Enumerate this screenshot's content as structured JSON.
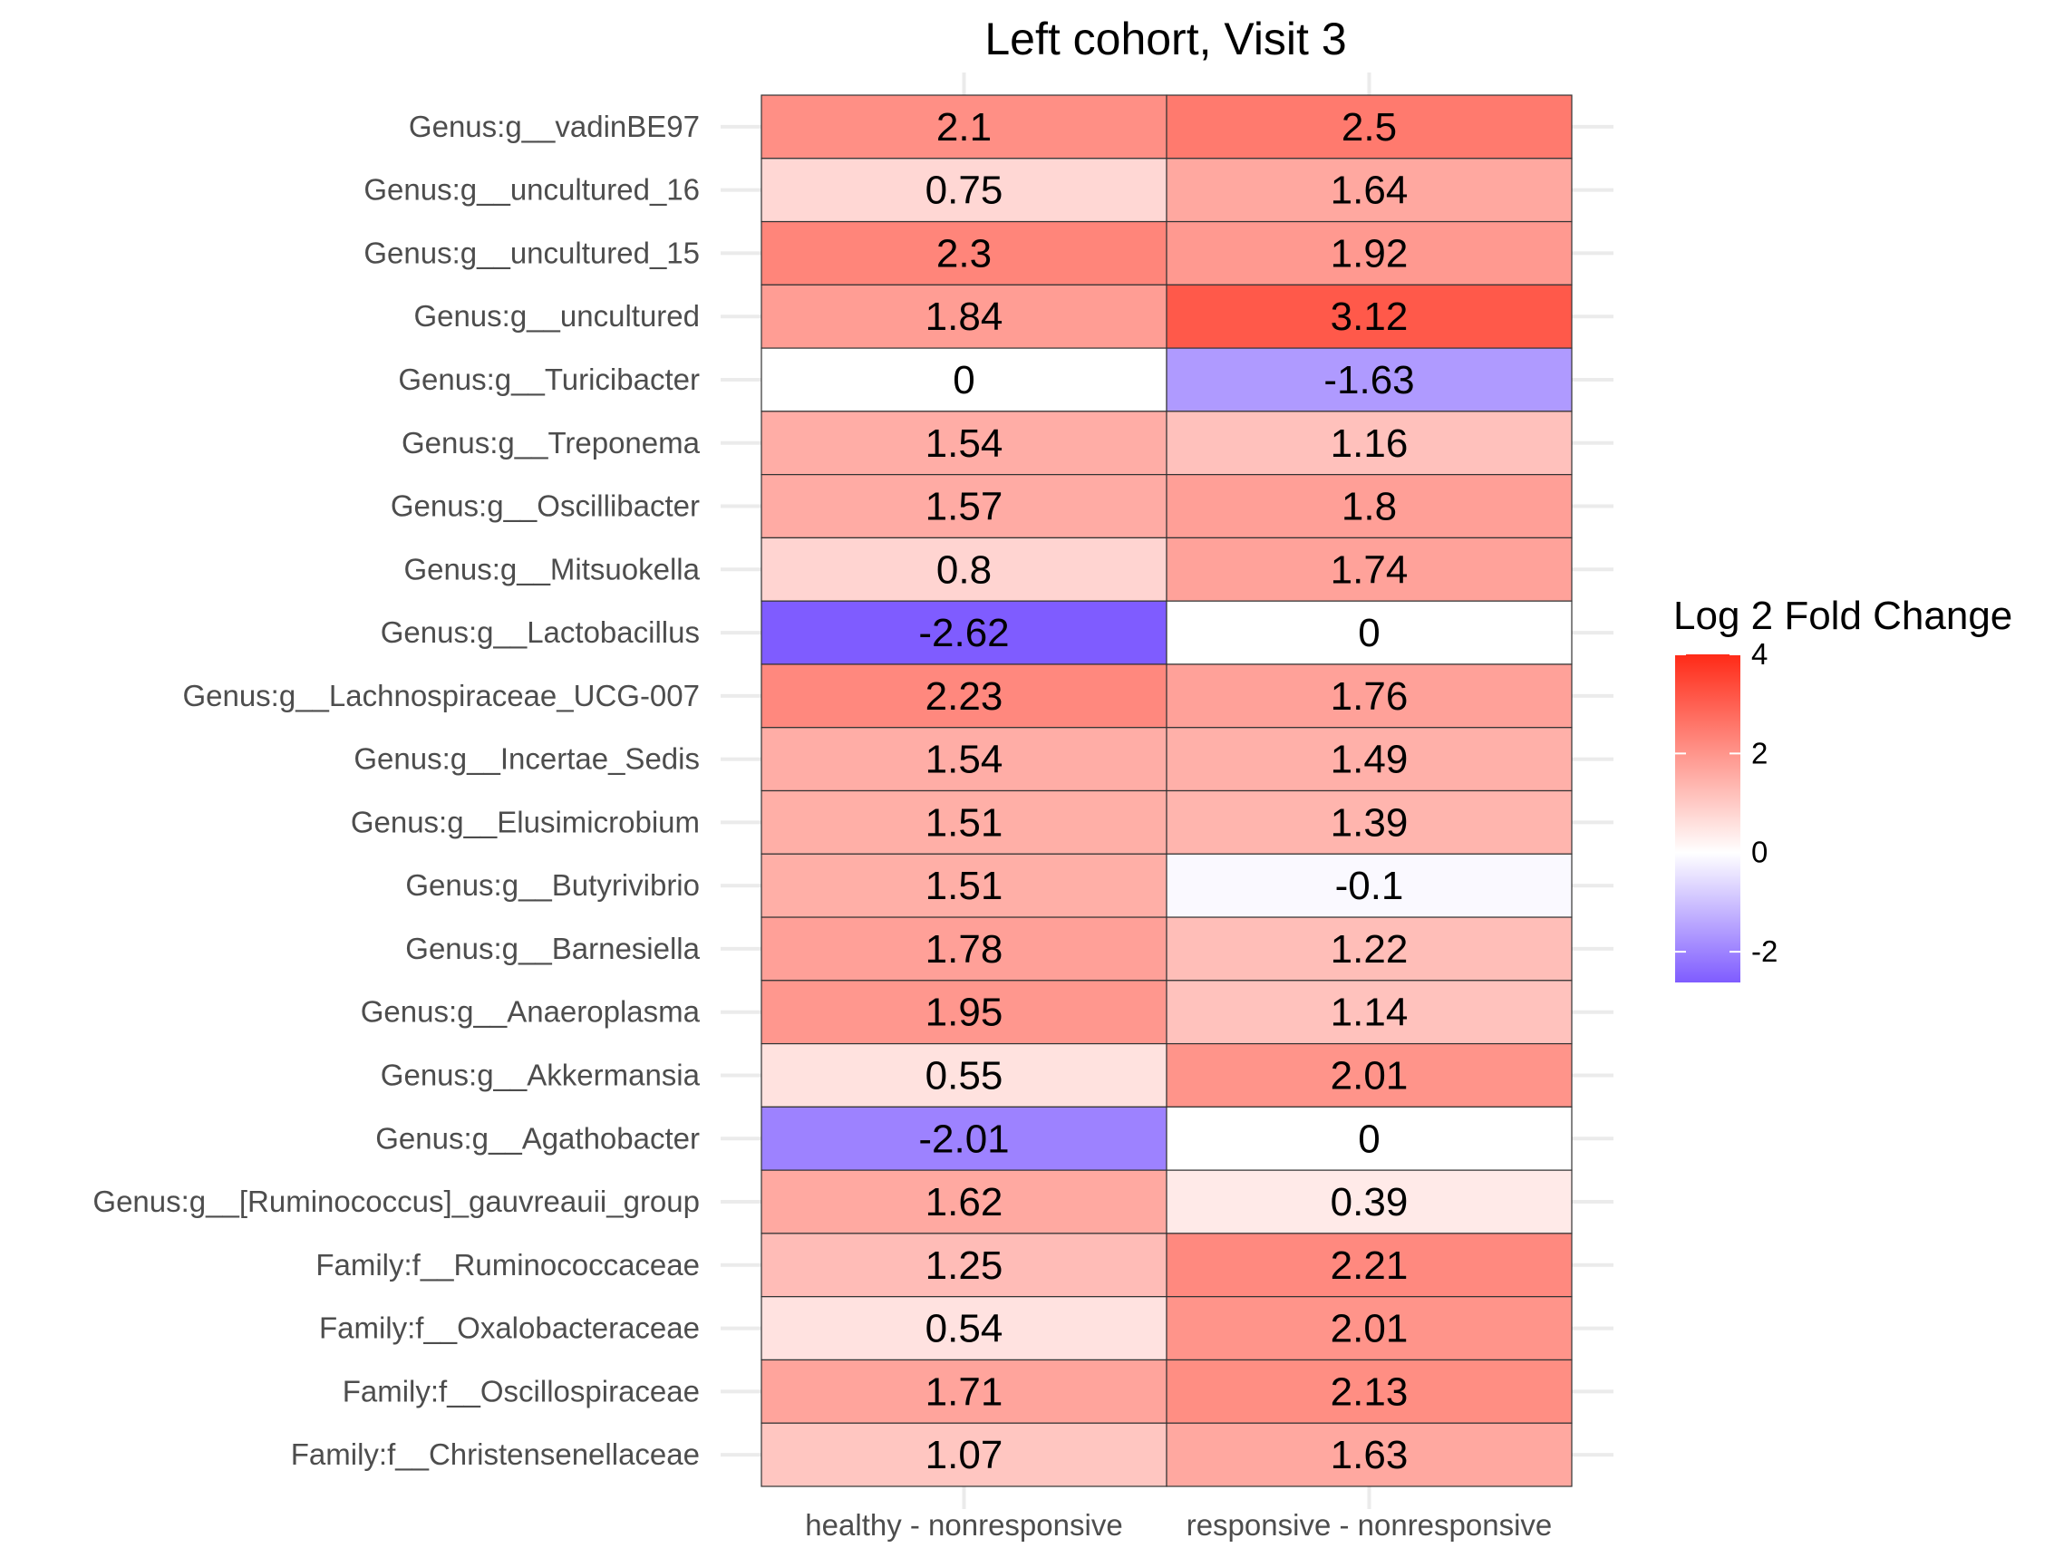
{
  "chart_data": {
    "type": "heatmap",
    "title": "Left cohort, Visit 3",
    "xlabel": "",
    "ylabel": "",
    "x_categories": [
      "healthy - nonresponsive",
      "responsive - nonresponsive"
    ],
    "y_categories": [
      "Genus:g__vadinBE97",
      "Genus:g__uncultured_16",
      "Genus:g__uncultured_15",
      "Genus:g__uncultured",
      "Genus:g__Turicibacter",
      "Genus:g__Treponema",
      "Genus:g__Oscillibacter",
      "Genus:g__Mitsuokella",
      "Genus:g__Lactobacillus",
      "Genus:g__Lachnospiraceae_UCG-007",
      "Genus:g__Incertae_Sedis",
      "Genus:g__Elusimicrobium",
      "Genus:g__Butyrivibrio",
      "Genus:g__Barnesiella",
      "Genus:g__Anaeroplasma",
      "Genus:g__Akkermansia",
      "Genus:g__Agathobacter",
      "Genus:g__[Ruminococcus]_gauvreauii_group",
      "Family:f__Ruminococcaceae",
      "Family:f__Oxalobacteraceae",
      "Family:f__Oscillospiraceae",
      "Family:f__Christensenellaceae"
    ],
    "values": [
      [
        2.1,
        2.5
      ],
      [
        0.75,
        1.64
      ],
      [
        2.3,
        1.92
      ],
      [
        1.84,
        3.12
      ],
      [
        0,
        -1.63
      ],
      [
        1.54,
        1.16
      ],
      [
        1.57,
        1.8
      ],
      [
        0.8,
        1.74
      ],
      [
        -2.62,
        0
      ],
      [
        2.23,
        1.76
      ],
      [
        1.54,
        1.49
      ],
      [
        1.51,
        1.39
      ],
      [
        1.51,
        -0.1
      ],
      [
        1.78,
        1.22
      ],
      [
        1.95,
        1.14
      ],
      [
        0.55,
        2.01
      ],
      [
        -2.01,
        0
      ],
      [
        1.62,
        0.39
      ],
      [
        1.25,
        2.21
      ],
      [
        0.54,
        2.01
      ],
      [
        1.71,
        2.13
      ],
      [
        1.07,
        1.63
      ]
    ],
    "cell_labels": [
      [
        "2.1",
        "2.5"
      ],
      [
        "0.75",
        "1.64"
      ],
      [
        "2.3",
        "1.92"
      ],
      [
        "1.84",
        "3.12"
      ],
      [
        "0",
        "-1.63"
      ],
      [
        "1.54",
        "1.16"
      ],
      [
        "1.57",
        "1.8"
      ],
      [
        "0.8",
        "1.74"
      ],
      [
        "-2.62",
        "0"
      ],
      [
        "2.23",
        "1.76"
      ],
      [
        "1.54",
        "1.49"
      ],
      [
        "1.51",
        "1.39"
      ],
      [
        "1.51",
        "-0.1"
      ],
      [
        "1.78",
        "1.22"
      ],
      [
        "1.95",
        "1.14"
      ],
      [
        "0.55",
        "2.01"
      ],
      [
        "-2.01",
        "0"
      ],
      [
        "1.62",
        "0.39"
      ],
      [
        "1.25",
        "2.21"
      ],
      [
        "0.54",
        "2.01"
      ],
      [
        "1.71",
        "2.13"
      ],
      [
        "1.07",
        "1.63"
      ]
    ],
    "legend": {
      "title": "Log 2 Fold Change",
      "placement": "right",
      "range": [
        -2.62,
        4
      ],
      "ticks": [
        -2,
        0,
        2,
        4
      ],
      "tick_labels": [
        "-2",
        "0",
        "2",
        "4"
      ],
      "colors": {
        "low": "#7f5cff",
        "mid": "#ffffff",
        "high": "#ff2a17"
      }
    },
    "grid": true
  }
}
